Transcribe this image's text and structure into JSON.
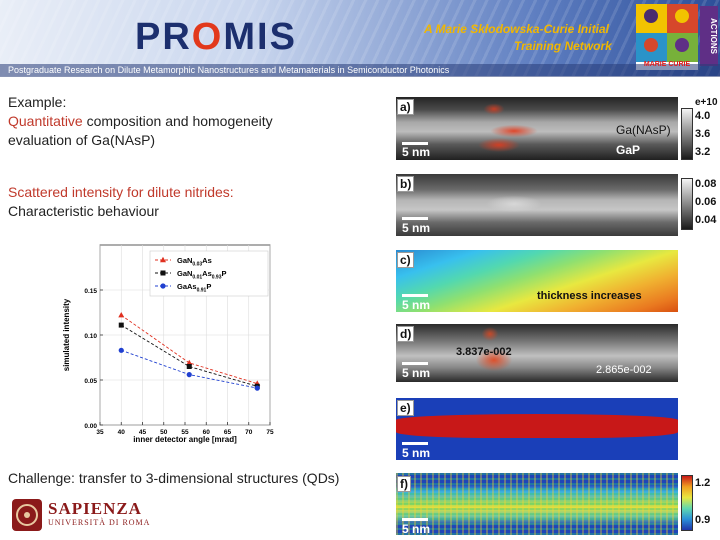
{
  "header": {
    "logo": {
      "pre": "PR",
      "o": "O",
      "post": "MIS"
    },
    "network_line1": "A Marie Skłodowska-Curie Initial",
    "network_line2": "Training Network",
    "actions_label": "ACTIONS",
    "mc_label": "MARIE CURIE",
    "subtitle": "Postgraduate Research on Dilute Metamorphic Nanostructures and Metamaterials in Semiconductor Photonics"
  },
  "left": {
    "example_label": "Example:",
    "quant_word": "Quantitative",
    "quant_rest": " composition and homogeneity",
    "quant_line2": "evaluation of Ga(NAsP)",
    "scattered_line1": "Scattered intensity for dilute nitrides:",
    "scattered_line2": "Characteristic behaviour",
    "challenge": "Challenge: transfer to 3-dimensional structures (QDs)",
    "university": "SAPIENZA",
    "university_sub": "UNIVERSITÀ DI ROMA"
  },
  "chart_data": {
    "type": "line",
    "xlabel": "inner detector angle [mrad]",
    "ylabel": "simulated intensity",
    "xlim": [
      35,
      75
    ],
    "ylim": [
      0,
      0.2
    ],
    "xticks": [
      35,
      40,
      45,
      50,
      55,
      60,
      65,
      70,
      75
    ],
    "yticks": [
      0.0,
      0.05,
      0.1,
      0.15
    ],
    "ytick_labels": [
      "0.00",
      "0.05",
      "0.10",
      "0.15"
    ],
    "series": [
      {
        "name": "GaN0.03As",
        "color": "#e03020",
        "marker": "triangle",
        "x": [
          40,
          56,
          72
        ],
        "y": [
          0.122,
          0.069,
          0.046
        ]
      },
      {
        "name": "GaN0.01As0.93P",
        "color": "#111111",
        "marker": "square",
        "x": [
          40,
          56,
          72
        ],
        "y": [
          0.111,
          0.065,
          0.043
        ]
      },
      {
        "name": "GaAs0.91P",
        "color": "#2040d0",
        "marker": "circle",
        "x": [
          40,
          56,
          72
        ],
        "y": [
          0.083,
          0.056,
          0.041
        ]
      }
    ],
    "legend": [
      {
        "base": "GaN",
        "sub1": "0.03",
        "mid1": "As",
        "sub2": "",
        "mid2": ""
      },
      {
        "base": "GaN",
        "sub1": "0.01",
        "mid1": "As",
        "sub2": "0.93",
        "mid2": "P"
      },
      {
        "base": "GaAs",
        "sub1": "0.91",
        "mid1": "P",
        "sub2": "",
        "mid2": ""
      }
    ]
  },
  "panels": {
    "a": {
      "label": "a)",
      "scale": "5 nm",
      "ann1": "Ga(NAsP)",
      "ann2": "GaP",
      "cb_exp": "e+10",
      "cb_ticks": [
        "4.0",
        "3.6",
        "3.2"
      ]
    },
    "b": {
      "label": "b)",
      "scale": "5 nm",
      "cb_ticks": [
        "0.08",
        "0.06",
        "0.04"
      ]
    },
    "c": {
      "label": "c)",
      "scale": "5 nm",
      "ann": "thickness increases"
    },
    "d": {
      "label": "d)",
      "scale": "5 nm",
      "ann1": "3.837e-002",
      "ann2": "2.865e-002"
    },
    "e": {
      "label": "e)",
      "scale": "5 nm"
    },
    "f": {
      "label": "f)",
      "scale": "5 nm",
      "cb_ticks": [
        "1.2",
        "0.9"
      ]
    }
  }
}
